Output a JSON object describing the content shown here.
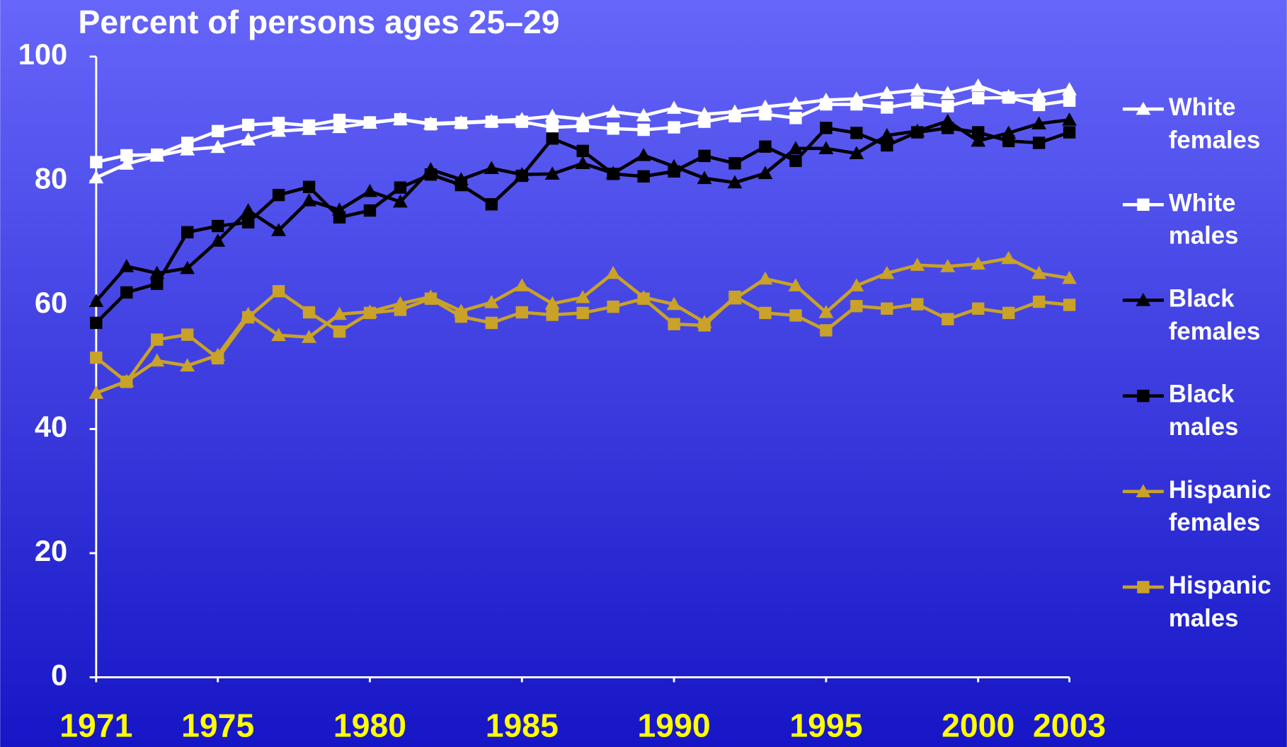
{
  "chart_data": {
    "type": "line",
    "title": "Percent of persons ages 25–29",
    "x": [
      1971,
      1972,
      1973,
      1974,
      1975,
      1976,
      1977,
      1978,
      1979,
      1980,
      1981,
      1982,
      1983,
      1984,
      1985,
      1986,
      1987,
      1988,
      1989,
      1990,
      1991,
      1992,
      1993,
      1994,
      1995,
      1996,
      1997,
      1998,
      1999,
      2000,
      2001,
      2002,
      2003
    ],
    "xlim": [
      1971,
      2003
    ],
    "xticks": [
      1971,
      1975,
      1980,
      1985,
      1990,
      1995,
      2000,
      2003
    ],
    "ylim": [
      0,
      100
    ],
    "yticks": [
      0,
      20,
      40,
      60,
      80,
      100
    ],
    "series": [
      {
        "name": "White females",
        "color": "#ffffff",
        "marker": "triangle",
        "values": [
          80.5,
          82.7,
          84,
          85,
          85.4,
          86.6,
          88,
          88.3,
          88.6,
          89.3,
          89.9,
          89.2,
          89.4,
          89.6,
          89.9,
          90.4,
          89.9,
          91.1,
          90.5,
          91.7,
          90.7,
          91.1,
          91.9,
          92.4,
          93,
          93.2,
          94.1,
          94.6,
          94.1,
          95.3,
          93.6,
          93.8,
          94.7
        ]
      },
      {
        "name": "White males",
        "color": "#ffffff",
        "marker": "square",
        "values": [
          83,
          84.1,
          84.2,
          86.1,
          88,
          89,
          89.3,
          88.9,
          89.8,
          89.4,
          89.9,
          89.1,
          89.3,
          89.5,
          89.5,
          88.6,
          88.8,
          88.4,
          88.2,
          88.6,
          89.5,
          90.4,
          90.7,
          90.1,
          92.3,
          92.3,
          91.8,
          92.6,
          92,
          93.3,
          93.4,
          92.2,
          92.9
        ]
      },
      {
        "name": "Black females",
        "color": "#000000",
        "marker": "triangle",
        "values": [
          60.6,
          66.2,
          65.1,
          65.9,
          70.3,
          75.2,
          72,
          76.8,
          75.3,
          78.3,
          76.6,
          81.8,
          80.2,
          82,
          81,
          81.1,
          82.8,
          81.2,
          84.1,
          82.3,
          80.4,
          79.7,
          81.2,
          85.2,
          85.2,
          84.4,
          87.3,
          88,
          89.6,
          86.4,
          87.7,
          89.2,
          89.8
        ]
      },
      {
        "name": "Black males",
        "color": "#000000",
        "marker": "square",
        "values": [
          57.1,
          62,
          63.4,
          71.7,
          72.7,
          73.3,
          77.7,
          79,
          74.1,
          75.2,
          78.9,
          81,
          79.3,
          76.2,
          80.8,
          86.8,
          84.8,
          81.1,
          80.7,
          81.5,
          84,
          82.8,
          85.5,
          83.2,
          88.5,
          87.7,
          85.7,
          87.8,
          88.5,
          87.8,
          86.4,
          86.1,
          87.8
        ]
      },
      {
        "name": "Hispanic females",
        "color": "#c9a227",
        "marker": "triangle",
        "values": [
          45.8,
          47.7,
          51,
          50.2,
          51.9,
          58.5,
          55.1,
          54.8,
          58.5,
          58.9,
          60.2,
          61.3,
          59,
          60.4,
          63.1,
          60.2,
          61.2,
          65.1,
          61.2,
          60.1,
          57.2,
          61,
          64.2,
          63.1,
          58.8,
          63.1,
          65.1,
          66.4,
          66.2,
          66.6,
          67.5,
          65.1,
          64.3
        ]
      },
      {
        "name": "Hispanic males",
        "color": "#c9a227",
        "marker": "square",
        "values": [
          51.5,
          47.6,
          54.4,
          55.2,
          51.4,
          58,
          62.2,
          58.8,
          55.7,
          58.7,
          59.2,
          61,
          58.1,
          57.1,
          58.8,
          58.4,
          58.7,
          59.7,
          61,
          56.9,
          56.7,
          61.3,
          58.7,
          58.3,
          55.9,
          59.8,
          59.4,
          60.1,
          57.7,
          59.4,
          58.7,
          60.5,
          60
        ]
      }
    ]
  }
}
